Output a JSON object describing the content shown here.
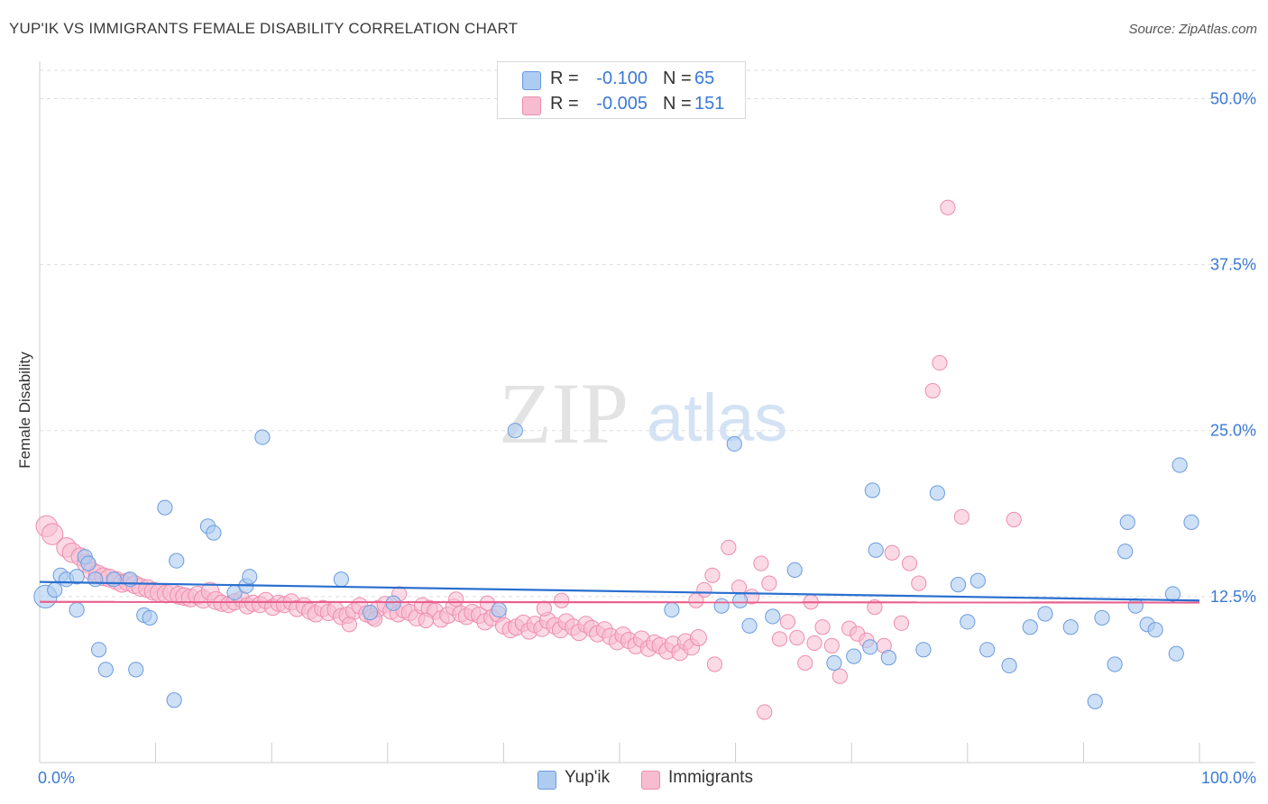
{
  "header": {
    "title": "YUP'IK VS IMMIGRANTS FEMALE DISABILITY CORRELATION CHART",
    "source": "Source: ZipAtlas.com"
  },
  "watermark": {
    "zip": "ZIP",
    "atlas": "atlas"
  },
  "legend": {
    "rows": [
      {
        "r_label": "R =",
        "r_value": "-0.100",
        "n_label": "N =",
        "n_value": "65"
      },
      {
        "r_label": "R =",
        "r_value": "-0.005",
        "n_label": "N =",
        "n_value": "151"
      }
    ]
  },
  "colors": {
    "yupik_fill": "#aecbf0",
    "yupik_stroke": "#6a9be0",
    "yupik_line": "#2a6fcf",
    "immigrants_fill": "#f7bcd0",
    "immigrants_stroke": "#ee8cae",
    "immigrants_line": "#e8608d",
    "tick_text": "#3b79d6",
    "grid": "#dddddd"
  },
  "chart_data": {
    "type": "scatter",
    "title": "YUP'IK VS IMMIGRANTS FEMALE DISABILITY CORRELATION CHART",
    "xlabel": "",
    "ylabel": "Female Disability",
    "xlim": [
      0,
      100
    ],
    "ylim": [
      0,
      52
    ],
    "x_tick_labels": [
      "0.0%",
      "100.0%"
    ],
    "y_ticks": [
      12.5,
      25.0,
      37.5,
      50.0
    ],
    "y_tick_labels": [
      "12.5%",
      "25.0%",
      "37.5%",
      "50.0%"
    ],
    "grid": true,
    "legend_position": "top-center",
    "series": [
      {
        "name": "Yup'ik",
        "r": -0.1,
        "n": 65,
        "trend": {
          "x": [
            0,
            100
          ],
          "y": [
            13.6,
            12.2
          ]
        },
        "points": [
          [
            0.5,
            12.5,
            1.4
          ],
          [
            1.3,
            13.0,
            0.9
          ],
          [
            1.8,
            14.1,
            0.9
          ],
          [
            2.3,
            13.8,
            0.9
          ],
          [
            3.2,
            14.0,
            0.9
          ],
          [
            3.2,
            11.5,
            0.9
          ],
          [
            3.9,
            15.5,
            0.9
          ],
          [
            4.2,
            15.0,
            0.9
          ],
          [
            4.8,
            13.8,
            0.9
          ],
          [
            5.1,
            8.5,
            0.9
          ],
          [
            5.7,
            7.0,
            0.9
          ],
          [
            6.4,
            13.8,
            0.9
          ],
          [
            7.8,
            13.8,
            0.9
          ],
          [
            8.3,
            7.0,
            0.9
          ],
          [
            9.0,
            11.1,
            0.9
          ],
          [
            9.5,
            10.9,
            0.9
          ],
          [
            10.8,
            19.2,
            0.9
          ],
          [
            11.6,
            4.7,
            0.9
          ],
          [
            11.8,
            15.2,
            0.9
          ],
          [
            14.5,
            17.8,
            0.9
          ],
          [
            15.0,
            17.3,
            0.9
          ],
          [
            16.8,
            12.8,
            0.9
          ],
          [
            17.8,
            13.3,
            0.9
          ],
          [
            18.1,
            14.0,
            0.9
          ],
          [
            19.2,
            24.5,
            0.9
          ],
          [
            26.0,
            13.8,
            0.9
          ],
          [
            28.5,
            11.3,
            0.9
          ],
          [
            30.5,
            12.0,
            0.9
          ],
          [
            39.6,
            11.5,
            0.9
          ],
          [
            41.0,
            25.0,
            0.9
          ],
          [
            54.5,
            11.5,
            0.9
          ],
          [
            58.8,
            11.8,
            0.9
          ],
          [
            59.9,
            24.0,
            0.9
          ],
          [
            60.4,
            12.2,
            0.9
          ],
          [
            61.2,
            10.3,
            0.9
          ],
          [
            63.2,
            11.0,
            0.9
          ],
          [
            65.1,
            14.5,
            0.9
          ],
          [
            68.5,
            7.5,
            0.9
          ],
          [
            70.2,
            8.0,
            0.9
          ],
          [
            71.6,
            8.7,
            0.9
          ],
          [
            71.8,
            20.5,
            0.9
          ],
          [
            72.1,
            16.0,
            0.9
          ],
          [
            73.2,
            7.9,
            0.9
          ],
          [
            76.2,
            8.5,
            0.9
          ],
          [
            77.4,
            20.3,
            0.9
          ],
          [
            79.2,
            13.4,
            0.9
          ],
          [
            80.0,
            10.6,
            0.9
          ],
          [
            80.9,
            13.7,
            0.9
          ],
          [
            81.7,
            8.5,
            0.9
          ],
          [
            83.6,
            7.3,
            0.9
          ],
          [
            85.4,
            10.2,
            0.9
          ],
          [
            86.7,
            11.2,
            0.9
          ],
          [
            88.9,
            10.2,
            0.9
          ],
          [
            91.0,
            4.6,
            0.9
          ],
          [
            91.6,
            10.9,
            0.9
          ],
          [
            92.7,
            7.4,
            0.9
          ],
          [
            93.6,
            15.9,
            0.9
          ],
          [
            93.8,
            18.1,
            0.9
          ],
          [
            94.5,
            11.8,
            0.9
          ],
          [
            95.5,
            10.4,
            0.9
          ],
          [
            96.2,
            10.0,
            0.9
          ],
          [
            97.7,
            12.7,
            0.9
          ],
          [
            98.0,
            8.2,
            0.9
          ],
          [
            98.3,
            22.4,
            0.9
          ],
          [
            99.3,
            18.1,
            0.9
          ]
        ]
      },
      {
        "name": "Immigrants",
        "r": -0.005,
        "n": 151,
        "trend": {
          "x": [
            0,
            100
          ],
          "y": [
            12.1,
            12.05
          ]
        },
        "points": [
          [
            0.6,
            17.8,
            1.3
          ],
          [
            1.1,
            17.2,
            1.3
          ],
          [
            2.3,
            16.2,
            1.2
          ],
          [
            2.8,
            15.8,
            1.2
          ],
          [
            3.5,
            15.5,
            1.1
          ],
          [
            4.0,
            15.0,
            1.1
          ],
          [
            4.5,
            14.4,
            1.1
          ],
          [
            5.0,
            14.2,
            1.1
          ],
          [
            5.5,
            14.0,
            1.1
          ],
          [
            6.0,
            13.9,
            1.1
          ],
          [
            6.6,
            13.7,
            1.1
          ],
          [
            7.1,
            13.5,
            1.1
          ],
          [
            7.6,
            13.6,
            1.1
          ],
          [
            8.2,
            13.4,
            1.1
          ],
          [
            8.7,
            13.2,
            1.1
          ],
          [
            9.3,
            13.1,
            1.1
          ],
          [
            9.8,
            12.9,
            1.1
          ],
          [
            10.3,
            12.8,
            1.1
          ],
          [
            10.9,
            12.7,
            1.1
          ],
          [
            11.4,
            12.8,
            1.1
          ],
          [
            12.0,
            12.6,
            1.1
          ],
          [
            12.5,
            12.5,
            1.1
          ],
          [
            13.0,
            12.4,
            1.1
          ],
          [
            13.6,
            12.6,
            1.1
          ],
          [
            14.1,
            12.3,
            1.1
          ],
          [
            14.7,
            12.9,
            1.1
          ],
          [
            15.2,
            12.2,
            1.1
          ],
          [
            15.7,
            12.0,
            1.0
          ],
          [
            16.3,
            11.9,
            1.0
          ],
          [
            16.8,
            12.1,
            1.0
          ],
          [
            17.4,
            12.3,
            1.0
          ],
          [
            17.9,
            11.8,
            1.0
          ],
          [
            18.4,
            12.0,
            1.0
          ],
          [
            19.0,
            11.9,
            1.0
          ],
          [
            19.5,
            12.2,
            1.0
          ],
          [
            20.1,
            11.7,
            1.0
          ],
          [
            20.6,
            12.0,
            1.0
          ],
          [
            21.1,
            11.9,
            1.0
          ],
          [
            21.7,
            12.1,
            1.0
          ],
          [
            22.2,
            11.6,
            1.0
          ],
          [
            22.8,
            11.8,
            1.0
          ],
          [
            23.3,
            11.4,
            1.0
          ],
          [
            23.8,
            11.2,
            1.0
          ],
          [
            24.4,
            11.6,
            1.0
          ],
          [
            24.9,
            11.3,
            1.0
          ],
          [
            25.5,
            11.5,
            1.0
          ],
          [
            26.0,
            11.0,
            1.0
          ],
          [
            26.5,
            11.1,
            1.0
          ],
          [
            27.1,
            11.4,
            1.0
          ],
          [
            27.6,
            11.8,
            1.0
          ],
          [
            28.2,
            11.2,
            1.0
          ],
          [
            28.7,
            11.0,
            1.0
          ],
          [
            29.2,
            11.6,
            1.0
          ],
          [
            29.8,
            11.9,
            1.0
          ],
          [
            30.3,
            11.4,
            1.0
          ],
          [
            30.9,
            11.2,
            1.0
          ],
          [
            31.4,
            11.5,
            1.0
          ],
          [
            31.9,
            11.3,
            1.0
          ],
          [
            32.5,
            10.9,
            1.0
          ],
          [
            33.0,
            11.8,
            1.0
          ],
          [
            33.6,
            11.6,
            1.0
          ],
          [
            34.1,
            11.4,
            1.0
          ],
          [
            34.6,
            10.8,
            1.0
          ],
          [
            35.2,
            11.1,
            1.0
          ],
          [
            35.7,
            11.7,
            1.0
          ],
          [
            36.3,
            11.2,
            1.0
          ],
          [
            36.8,
            11.0,
            1.0
          ],
          [
            37.3,
            11.3,
            1.0
          ],
          [
            37.9,
            11.1,
            1.0
          ],
          [
            38.4,
            10.6,
            1.0
          ],
          [
            39.0,
            10.9,
            1.0
          ],
          [
            39.5,
            11.2,
            1.0
          ],
          [
            40.0,
            10.3,
            1.0
          ],
          [
            40.6,
            10.0,
            1.0
          ],
          [
            41.1,
            10.2,
            1.0
          ],
          [
            41.7,
            10.5,
            1.0
          ],
          [
            42.2,
            9.9,
            1.0
          ],
          [
            42.7,
            10.4,
            1.0
          ],
          [
            43.3,
            10.1,
            1.0
          ],
          [
            43.8,
            10.7,
            1.0
          ],
          [
            44.4,
            10.3,
            1.0
          ],
          [
            44.9,
            10.0,
            1.0
          ],
          [
            45.4,
            10.6,
            1.0
          ],
          [
            46.0,
            10.2,
            1.0
          ],
          [
            46.5,
            9.8,
            1.0
          ],
          [
            47.1,
            10.4,
            1.0
          ],
          [
            47.6,
            10.1,
            1.0
          ],
          [
            48.1,
            9.7,
            1.0
          ],
          [
            48.7,
            10.0,
            1.0
          ],
          [
            49.2,
            9.5,
            1.0
          ],
          [
            49.8,
            9.1,
            1.0
          ],
          [
            50.3,
            9.6,
            1.0
          ],
          [
            50.8,
            9.2,
            1.0
          ],
          [
            51.4,
            8.8,
            1.0
          ],
          [
            51.9,
            9.3,
            1.0
          ],
          [
            52.5,
            8.6,
            1.0
          ],
          [
            53.0,
            9.0,
            1.0
          ],
          [
            53.5,
            8.8,
            1.0
          ],
          [
            54.1,
            8.4,
            1.0
          ],
          [
            54.6,
            8.9,
            1.0
          ],
          [
            55.2,
            8.3,
            1.0
          ],
          [
            55.7,
            9.1,
            1.0
          ],
          [
            56.2,
            8.7,
            1.0
          ],
          [
            56.8,
            9.4,
            1.0
          ],
          [
            57.3,
            13.0,
            0.9
          ],
          [
            58.0,
            14.1,
            0.9
          ],
          [
            59.4,
            16.2,
            0.9
          ],
          [
            60.3,
            13.2,
            0.9
          ],
          [
            61.4,
            12.5,
            0.9
          ],
          [
            62.2,
            15.0,
            0.9
          ],
          [
            62.9,
            13.5,
            0.9
          ],
          [
            63.8,
            9.3,
            0.9
          ],
          [
            64.5,
            10.6,
            0.9
          ],
          [
            65.3,
            9.4,
            0.9
          ],
          [
            66.0,
            7.5,
            0.9
          ],
          [
            66.8,
            9.0,
            0.9
          ],
          [
            67.5,
            10.2,
            0.9
          ],
          [
            68.3,
            8.8,
            0.9
          ],
          [
            69.0,
            6.5,
            0.9
          ],
          [
            69.8,
            10.1,
            0.9
          ],
          [
            70.5,
            9.7,
            0.9
          ],
          [
            71.3,
            9.2,
            0.9
          ],
          [
            72.0,
            11.7,
            0.9
          ],
          [
            72.8,
            8.8,
            0.9
          ],
          [
            73.5,
            15.8,
            0.9
          ],
          [
            74.3,
            10.5,
            0.9
          ],
          [
            75.0,
            15.0,
            0.9
          ],
          [
            75.8,
            13.5,
            0.9
          ],
          [
            77.0,
            28.0,
            0.9
          ],
          [
            77.6,
            30.1,
            0.9
          ],
          [
            78.3,
            41.8,
            0.9
          ],
          [
            79.5,
            18.5,
            0.9
          ],
          [
            62.5,
            3.8,
            0.9
          ],
          [
            84.0,
            18.3,
            0.9
          ],
          [
            58.2,
            7.4,
            0.9
          ],
          [
            56.6,
            12.2,
            0.9
          ],
          [
            43.5,
            11.6,
            0.9
          ],
          [
            45.0,
            12.2,
            0.9
          ],
          [
            26.7,
            10.4,
            0.9
          ],
          [
            31.0,
            12.7,
            0.9
          ],
          [
            33.3,
            10.7,
            0.9
          ],
          [
            35.9,
            12.3,
            0.9
          ],
          [
            38.6,
            12.0,
            0.9
          ],
          [
            66.5,
            12.1,
            0.9
          ],
          [
            28.9,
            10.8,
            0.9
          ]
        ]
      }
    ]
  },
  "bottom_legend": {
    "items": [
      {
        "label": "Yup'ik"
      },
      {
        "label": "Immigrants"
      }
    ]
  }
}
